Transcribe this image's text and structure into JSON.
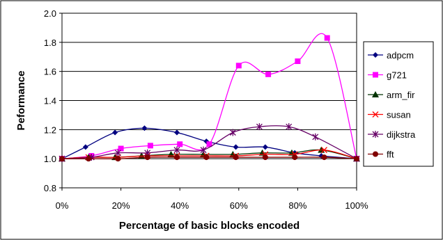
{
  "chart_data": {
    "type": "line",
    "xlabel": "Percentage of basic blocks encoded",
    "ylabel": "Peformance",
    "ylim": [
      0.8,
      2.0
    ],
    "xlim": [
      0,
      100
    ],
    "x_ticks": [
      "0%",
      "20%",
      "40%",
      "60%",
      "80%",
      "100%"
    ],
    "y_ticks": [
      "0.8",
      "1.0",
      "1.2",
      "1.4",
      "1.6",
      "1.8",
      "2.0"
    ],
    "grid": "horizontal",
    "legend_position": "right",
    "series": [
      {
        "name": "adpcm",
        "color": "#000080",
        "marker": "diamond",
        "x": [
          0,
          8,
          18,
          28,
          39,
          49,
          59,
          69,
          79,
          88,
          100
        ],
        "y": [
          1.0,
          1.08,
          1.18,
          1.21,
          1.18,
          1.12,
          1.08,
          1.08,
          1.04,
          1.02,
          1.0
        ]
      },
      {
        "name": "g721",
        "color": "#ff00ff",
        "marker": "square",
        "x": [
          0,
          10,
          20,
          30,
          40,
          50,
          60,
          70,
          80,
          90,
          100
        ],
        "y": [
          1.0,
          1.02,
          1.07,
          1.09,
          1.1,
          1.1,
          1.64,
          1.58,
          1.67,
          1.83,
          1.0
        ]
      },
      {
        "name": "arm_fir",
        "color": "#003300",
        "marker": "triangle",
        "x": [
          0,
          9,
          18,
          27,
          37,
          48,
          58,
          68,
          78,
          88,
          100
        ],
        "y": [
          1.0,
          1.01,
          1.01,
          1.02,
          1.03,
          1.03,
          1.03,
          1.04,
          1.04,
          1.06,
          1.0
        ]
      },
      {
        "name": "susan",
        "color": "#ff0000",
        "marker": "x",
        "x": [
          0,
          9,
          19,
          29,
          39,
          49,
          59,
          69,
          79,
          89,
          100
        ],
        "y": [
          1.0,
          1.01,
          1.01,
          1.02,
          1.02,
          1.02,
          1.02,
          1.03,
          1.03,
          1.06,
          1.0
        ]
      },
      {
        "name": "dijkstra",
        "color": "#660066",
        "marker": "star",
        "x": [
          0,
          10,
          19,
          29,
          39,
          48,
          58,
          67,
          77,
          86,
          100
        ],
        "y": [
          1.0,
          1.01,
          1.04,
          1.04,
          1.06,
          1.06,
          1.18,
          1.22,
          1.22,
          1.15,
          1.0
        ]
      },
      {
        "name": "fft",
        "color": "#800000",
        "marker": "circle",
        "x": [
          0,
          9,
          19,
          29,
          39,
          49,
          59,
          69,
          79,
          89,
          100
        ],
        "y": [
          1.0,
          1.0,
          1.0,
          1.01,
          1.01,
          1.01,
          1.01,
          1.01,
          1.01,
          1.01,
          1.0
        ]
      }
    ]
  }
}
